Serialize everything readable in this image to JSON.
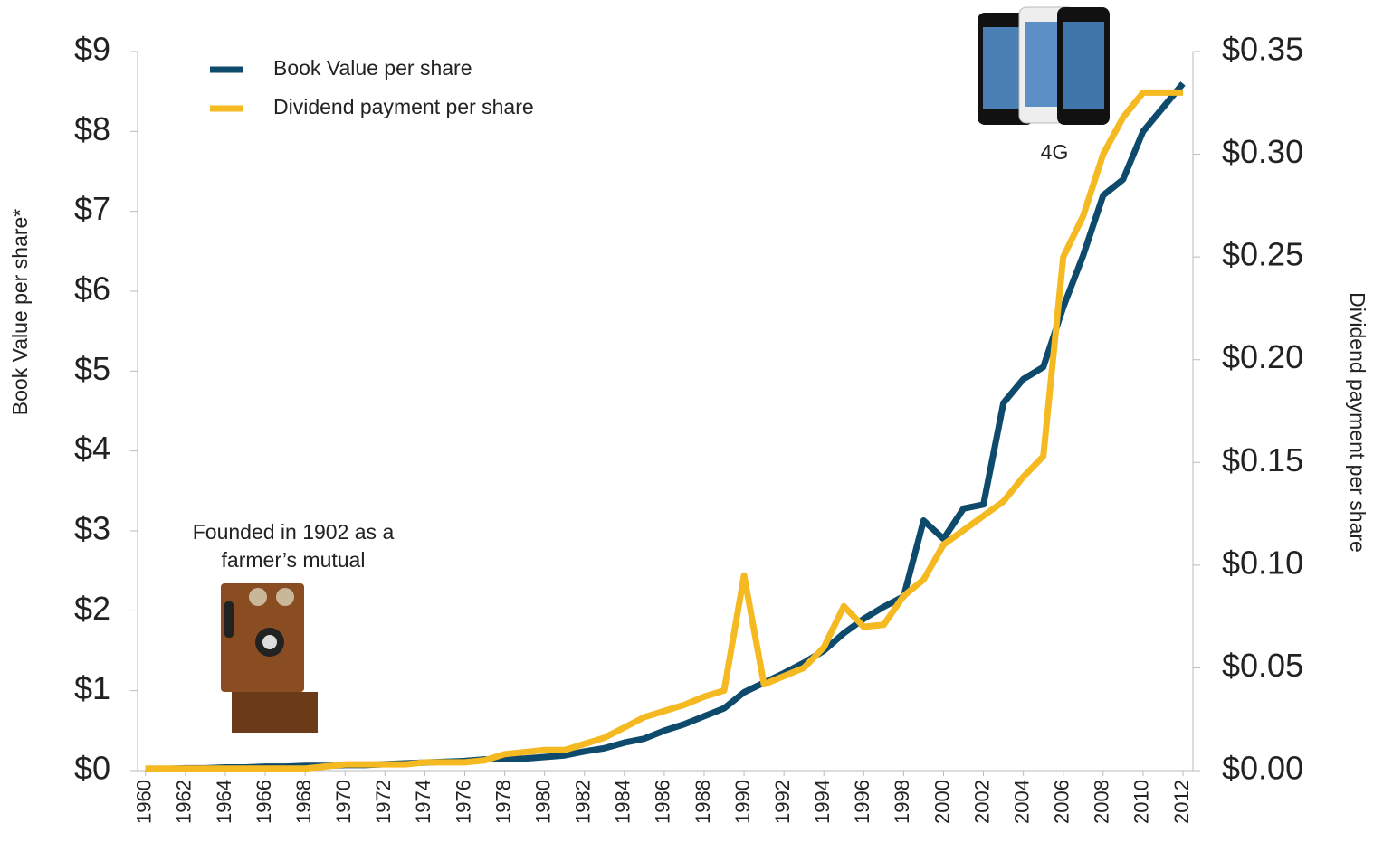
{
  "chart_data": {
    "type": "line",
    "y_label": "Book Value per share*",
    "y2_label": "Dividend payment per share",
    "x": [
      1960,
      1961,
      1962,
      1963,
      1964,
      1965,
      1966,
      1967,
      1968,
      1969,
      1970,
      1971,
      1972,
      1973,
      1974,
      1975,
      1976,
      1977,
      1978,
      1979,
      1980,
      1981,
      1982,
      1983,
      1984,
      1985,
      1986,
      1987,
      1988,
      1989,
      1990,
      1991,
      1992,
      1993,
      1994,
      1995,
      1996,
      1997,
      1998,
      1999,
      2000,
      2001,
      2002,
      2003,
      2004,
      2005,
      2006,
      2007,
      2008,
      2009,
      2010,
      2011,
      2012
    ],
    "xlim": [
      1959.6,
      2012.5
    ],
    "xticks": [
      1960,
      1962,
      1964,
      1966,
      1968,
      1970,
      1972,
      1974,
      1976,
      1978,
      1980,
      1982,
      1984,
      1986,
      1988,
      1990,
      1992,
      1994,
      1996,
      1998,
      2000,
      2002,
      2004,
      2006,
      2008,
      2010,
      2012
    ],
    "ylim": [
      0,
      9
    ],
    "yticks": [
      {
        "value": 0,
        "label": "$0"
      },
      {
        "value": 1,
        "label": "$1"
      },
      {
        "value": 2,
        "label": "$2"
      },
      {
        "value": 3,
        "label": "$3"
      },
      {
        "value": 4,
        "label": "$4"
      },
      {
        "value": 5,
        "label": "$5"
      },
      {
        "value": 6,
        "label": "$6"
      },
      {
        "value": 7,
        "label": "$7"
      },
      {
        "value": 8,
        "label": "$8"
      },
      {
        "value": 9,
        "label": "$9"
      }
    ],
    "y2lim": [
      0,
      0.35
    ],
    "y2ticks": [
      {
        "value": 0,
        "label": "$0.00"
      },
      {
        "value": 0.05,
        "label": "$0.05"
      },
      {
        "value": 0.1,
        "label": "$0.10"
      },
      {
        "value": 0.15,
        "label": "$0.15"
      },
      {
        "value": 0.2,
        "label": "$0.20"
      },
      {
        "value": 0.25,
        "label": "$0.25"
      },
      {
        "value": 0.3,
        "label": "$0.30"
      },
      {
        "value": 0.35,
        "label": "$0.35"
      }
    ],
    "series": [
      {
        "name": "Book Value per share",
        "color": "#0d4a6b",
        "values": [
          0.02,
          0.02,
          0.03,
          0.03,
          0.04,
          0.04,
          0.05,
          0.05,
          0.06,
          0.06,
          0.07,
          0.07,
          0.08,
          0.09,
          0.1,
          0.11,
          0.12,
          0.14,
          0.15,
          0.15,
          0.17,
          0.19,
          0.24,
          0.28,
          0.35,
          0.4,
          0.5,
          0.58,
          0.68,
          0.78,
          0.98,
          1.1,
          1.22,
          1.35,
          1.5,
          1.72,
          1.9,
          2.05,
          2.18,
          3.13,
          2.9,
          3.28,
          3.33,
          4.6,
          4.9,
          5.05,
          5.8,
          6.45,
          7.2,
          7.4,
          8.0,
          8.3,
          8.6
        ]
      },
      {
        "name": "Dividend payment per share",
        "color": "#f5b922",
        "axis": "y2",
        "values": [
          0.001,
          0.001,
          0.001,
          0.001,
          0.001,
          0.001,
          0.001,
          0.001,
          0.001,
          0.002,
          0.003,
          0.003,
          0.003,
          0.003,
          0.004,
          0.004,
          0.004,
          0.005,
          0.008,
          0.009,
          0.01,
          0.01,
          0.013,
          0.016,
          0.021,
          0.026,
          0.029,
          0.032,
          0.036,
          0.039,
          0.095,
          0.042,
          0.046,
          0.05,
          0.06,
          0.08,
          0.07,
          0.071,
          0.085,
          0.093,
          0.11,
          0.117,
          0.124,
          0.131,
          0.143,
          0.153,
          0.25,
          0.27,
          0.3,
          0.318,
          0.33,
          0.33,
          0.33
        ]
      }
    ],
    "annotations": [
      {
        "lines": [
          "Founded in 1902 as a",
          "farmer’s mutual"
        ]
      },
      {
        "lines": [
          "4G"
        ]
      }
    ]
  }
}
